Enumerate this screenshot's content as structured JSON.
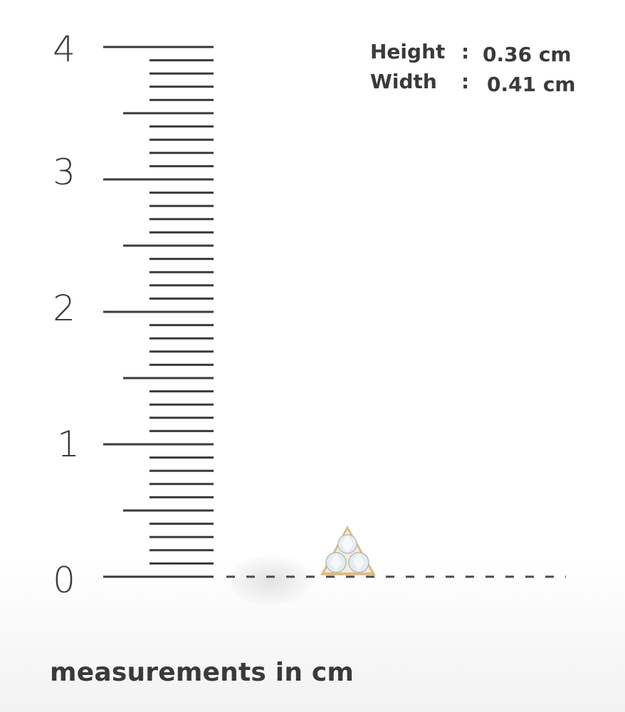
{
  "ruler": {
    "unit": "cm",
    "labels": [
      "0",
      "1",
      "2",
      "3",
      "4"
    ]
  },
  "dimensions": {
    "height_label": "Height",
    "height_value": "0.36 cm",
    "width_label": "Width",
    "width_value": "0.41 cm",
    "separator": ":"
  },
  "caption": "measurements in cm",
  "product": {
    "icon": "trio-diamond-stud-earring",
    "metal_color": "#d9b57a",
    "stone_color": "#e9eef0"
  }
}
